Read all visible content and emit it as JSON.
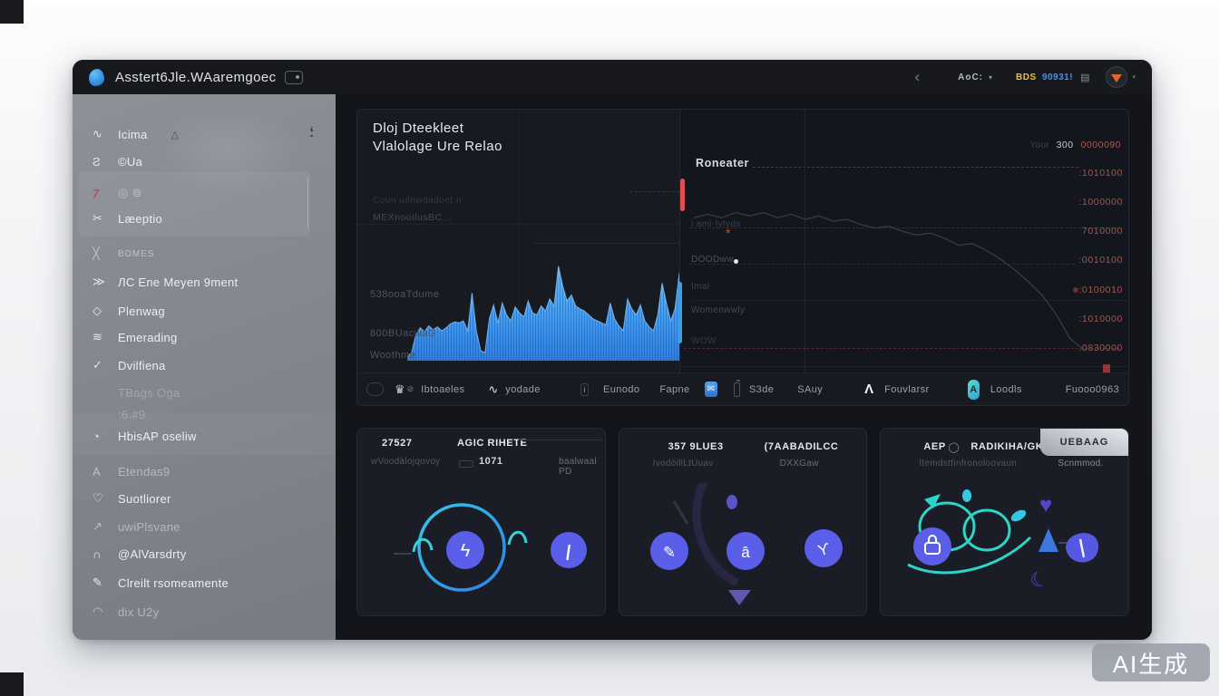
{
  "app": {
    "title": "Asstert6Jle.WAaremgoec"
  },
  "topbar": {
    "back": "‹",
    "menu": "AoC:",
    "caret": "▾",
    "token": "BDS",
    "token_value": "90931!",
    "doc_icon": "▤"
  },
  "sidebar": {
    "pin": ";",
    "items": [
      {
        "icon": "∿",
        "label": "Icima",
        "trail": "△"
      },
      {
        "icon": "Ƨ",
        "label": "©Ua"
      },
      {
        "icon": "7",
        "label": "◎ ⊚"
      },
      {
        "icon": "✂",
        "label": "Læeptio"
      },
      {
        "icon": "╳",
        "label": "BDMES"
      },
      {
        "icon": "≫",
        "label": "ЛC Ene Meyen 9ment"
      },
      {
        "icon": "◇",
        "label": "Plenwag"
      },
      {
        "icon": "≋",
        "label": "Emerading"
      },
      {
        "icon": "✓",
        "label": "Dvilfiena"
      },
      {
        "icon": "",
        "label": "TBags   Oga"
      },
      {
        "icon": "",
        "label": ":6.#9"
      },
      {
        "icon": "◔",
        "label": "HbisAP oseliw"
      },
      {
        "icon": "A",
        "label": "Etendas9"
      },
      {
        "icon": "♡",
        "label": "Suotliorer"
      },
      {
        "icon": "↗",
        "label": "uwiPlsvane"
      },
      {
        "icon": "∩",
        "label": "@AlVarsdrty"
      },
      {
        "icon": "✎",
        "label": "Clreilt rsomeamente"
      },
      {
        "icon": "◠",
        "label": "dix U2y"
      }
    ]
  },
  "chart": {
    "title_line1": "Dloj Dteekleet",
    "title_line2": "Vlalolage Ure Relao",
    "faint1": "Coun udnwdadoet n",
    "faint2": "MEXnooilusBC…",
    "right": {
      "legend": "Roneater",
      "top_faint": "Your",
      "top_value": "300",
      "asterisk": "*",
      "left_labels": [
        "i ami·lytyds",
        "DOODww",
        "Imal",
        "Womenwwly",
        "WOW"
      ]
    }
  },
  "toolbar": {
    "crown": "♛",
    "slash": "⊘",
    "wave": "∿",
    "info": "i",
    "envelope": "✉",
    "hands": "Λ",
    "badge": "A",
    "labels": [
      "Ibtoaeles",
      "yodade",
      "Eunodo",
      "Fapne",
      "S3de",
      "SAuy",
      "Fouvlarsr",
      "Loodls",
      "Fuooo0963"
    ]
  },
  "cards": [
    {
      "title": "27527",
      "title2": "AGIC RIHETE",
      "sub": "wVoodàlojqovoy",
      "value": "1071",
      "sub_right": "baalwaal PD",
      "glyph1": "ϟ",
      "glyph2": "|"
    },
    {
      "title": "357 9LUE3",
      "title2": "(7AABADILCC",
      "sub": "IvodòillLtUuav",
      "sub_right": "DXXGaw",
      "glyph1": "✎",
      "glyph2": "â",
      "glyph3": "ϒ"
    },
    {
      "title": "AEP",
      "ring": "◯",
      "title2": "RADIKIHA/GK",
      "badge": "UEBAAG",
      "sub": "Itemdstfinfronoloovaun",
      "sub_right": "Scnmmod.",
      "heart": "♥",
      "moon": "☾"
    }
  ],
  "watermark": "AI生成",
  "colors": {
    "accent_blue": "#42a4f7",
    "purple": "#5a5ee8",
    "teal": "#2fd4c8",
    "red_marker": "#e04f4f",
    "axis_red": "#9c5a52",
    "token_yellow": "#e8c23a",
    "token_blue": "#4a90e8"
  },
  "chart_data": [
    {
      "type": "area",
      "title": "Dloj Dteekleet Vlalolage Ure Relao",
      "ylabels": [
        "538ooaTdume",
        "800BUacwaG",
        "Woothme"
      ],
      "ylim": [
        0,
        100
      ],
      "color": "#42a4f7",
      "values": [
        4,
        8,
        26,
        33,
        29,
        35,
        31,
        34,
        30,
        33,
        37,
        39,
        38,
        40,
        30,
        68,
        30,
        10,
        8,
        42,
        56,
        38,
        58,
        46,
        40,
        54,
        48,
        44,
        60,
        48,
        46,
        55,
        50,
        62,
        55,
        95,
        75,
        60,
        66,
        55,
        52,
        50,
        46,
        42,
        40,
        38,
        36,
        58,
        42,
        35,
        30,
        62,
        52,
        46,
        56,
        40,
        34,
        30,
        46,
        78,
        58,
        40,
        52,
        88
      ]
    },
    {
      "type": "line",
      "name": "Roneater",
      "color": "#39404d",
      "right_axis_labels": [
        "0000090",
        ":1010100",
        ":1000000",
        "7010000",
        ":0010100",
        ":0100010",
        ":1010000",
        ".0830000"
      ],
      "values": [
        18,
        16,
        18,
        15,
        17,
        15,
        18,
        16,
        19,
        17,
        20,
        19,
        22,
        24,
        23,
        26,
        28,
        27,
        30,
        34,
        33,
        37,
        42,
        48,
        55,
        63,
        74,
        88,
        95
      ]
    }
  ]
}
